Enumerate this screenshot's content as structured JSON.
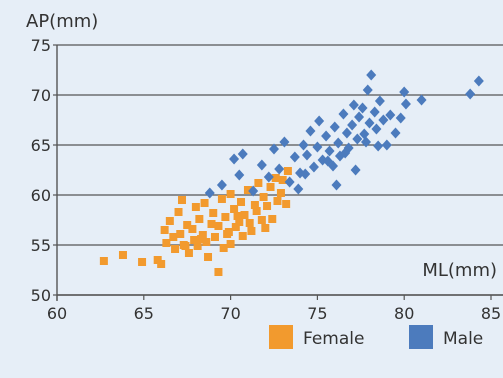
{
  "chart_data": {
    "type": "scatter",
    "xlabel": "ML(mm)",
    "ylabel": "AP(mm)",
    "xlim": [
      60,
      85
    ],
    "ylim": [
      50,
      75
    ],
    "x_ticks": [
      "60",
      "65",
      "70",
      "75",
      "80",
      "85"
    ],
    "y_ticks": [
      "50",
      "55",
      "60",
      "65",
      "70",
      "75"
    ],
    "grid": "horizontal",
    "legend_position": "bottom-right",
    "series": [
      {
        "name": "Female",
        "color": "#f29a2e",
        "marker": "square",
        "points": [
          [
            62.7,
            53.4
          ],
          [
            63.8,
            54.0
          ],
          [
            64.9,
            53.3
          ],
          [
            65.8,
            53.5
          ],
          [
            66.0,
            53.1
          ],
          [
            66.2,
            56.5
          ],
          [
            66.3,
            55.2
          ],
          [
            66.5,
            57.4
          ],
          [
            66.7,
            55.8
          ],
          [
            66.8,
            54.6
          ],
          [
            67.0,
            58.3
          ],
          [
            67.1,
            56.1
          ],
          [
            67.2,
            59.5
          ],
          [
            67.3,
            55.0
          ],
          [
            67.5,
            57.0
          ],
          [
            67.6,
            54.2
          ],
          [
            67.8,
            56.6
          ],
          [
            67.9,
            55.5
          ],
          [
            68.0,
            58.8
          ],
          [
            68.1,
            54.9
          ],
          [
            68.2,
            57.6
          ],
          [
            68.4,
            56.0
          ],
          [
            68.5,
            59.2
          ],
          [
            68.6,
            55.3
          ],
          [
            68.7,
            53.8
          ],
          [
            68.9,
            57.1
          ],
          [
            69.0,
            58.2
          ],
          [
            69.1,
            55.8
          ],
          [
            69.3,
            56.9
          ],
          [
            69.3,
            52.3
          ],
          [
            69.5,
            59.6
          ],
          [
            69.6,
            54.7
          ],
          [
            69.7,
            57.8
          ],
          [
            69.9,
            56.3
          ],
          [
            70.0,
            60.1
          ],
          [
            70.0,
            55.1
          ],
          [
            70.2,
            58.6
          ],
          [
            70.3,
            56.8
          ],
          [
            70.4,
            57.9
          ],
          [
            70.6,
            59.3
          ],
          [
            70.7,
            55.9
          ],
          [
            70.8,
            58.0
          ],
          [
            71.0,
            60.5
          ],
          [
            71.1,
            57.2
          ],
          [
            71.2,
            56.4
          ],
          [
            71.4,
            59.0
          ],
          [
            71.5,
            58.4
          ],
          [
            71.6,
            61.2
          ],
          [
            71.8,
            57.5
          ],
          [
            71.9,
            59.8
          ],
          [
            72.0,
            56.7
          ],
          [
            72.1,
            58.9
          ],
          [
            72.3,
            60.8
          ],
          [
            72.4,
            57.6
          ],
          [
            72.6,
            61.7
          ],
          [
            72.7,
            59.4
          ],
          [
            72.9,
            60.2
          ],
          [
            73.0,
            61.5
          ],
          [
            73.2,
            59.1
          ],
          [
            73.3,
            62.4
          ],
          [
            67.4,
            54.9
          ],
          [
            68.3,
            55.6
          ],
          [
            69.8,
            56.1
          ],
          [
            70.5,
            57.3
          ]
        ]
      },
      {
        "name": "Male",
        "color": "#4c7bbd",
        "marker": "diamond",
        "points": [
          [
            68.8,
            60.2
          ],
          [
            69.5,
            61.0
          ],
          [
            70.2,
            63.6
          ],
          [
            70.5,
            62.0
          ],
          [
            70.7,
            64.1
          ],
          [
            71.3,
            60.4
          ],
          [
            71.8,
            63.0
          ],
          [
            72.2,
            61.8
          ],
          [
            72.5,
            64.6
          ],
          [
            72.8,
            62.6
          ],
          [
            73.1,
            65.3
          ],
          [
            73.4,
            61.3
          ],
          [
            73.7,
            63.8
          ],
          [
            74.0,
            62.2
          ],
          [
            74.2,
            65.0
          ],
          [
            74.4,
            64.0
          ],
          [
            74.6,
            66.4
          ],
          [
            74.8,
            62.8
          ],
          [
            75.0,
            64.8
          ],
          [
            75.1,
            67.4
          ],
          [
            75.3,
            63.5
          ],
          [
            75.5,
            65.9
          ],
          [
            75.7,
            64.4
          ],
          [
            75.9,
            62.9
          ],
          [
            76.0,
            66.8
          ],
          [
            76.2,
            65.2
          ],
          [
            76.3,
            63.9
          ],
          [
            76.5,
            68.1
          ],
          [
            76.7,
            66.2
          ],
          [
            76.8,
            64.7
          ],
          [
            77.0,
            67.0
          ],
          [
            77.1,
            69.0
          ],
          [
            77.3,
            65.6
          ],
          [
            77.4,
            67.8
          ],
          [
            77.6,
            68.7
          ],
          [
            77.7,
            66.1
          ],
          [
            77.9,
            70.5
          ],
          [
            78.0,
            67.2
          ],
          [
            78.1,
            72.0
          ],
          [
            78.3,
            68.3
          ],
          [
            78.4,
            66.6
          ],
          [
            78.6,
            69.4
          ],
          [
            78.8,
            67.5
          ],
          [
            79.0,
            65.0
          ],
          [
            79.2,
            68.0
          ],
          [
            79.5,
            66.2
          ],
          [
            79.8,
            67.7
          ],
          [
            80.0,
            70.3
          ],
          [
            80.1,
            69.1
          ],
          [
            81.0,
            69.5
          ],
          [
            83.8,
            70.1
          ],
          [
            84.3,
            71.4
          ],
          [
            76.1,
            61.0
          ],
          [
            77.2,
            62.5
          ],
          [
            78.5,
            64.9
          ],
          [
            75.6,
            63.4
          ],
          [
            74.3,
            62.1
          ],
          [
            73.9,
            60.6
          ],
          [
            76.6,
            64.2
          ],
          [
            77.8,
            65.3
          ]
        ]
      }
    ]
  }
}
